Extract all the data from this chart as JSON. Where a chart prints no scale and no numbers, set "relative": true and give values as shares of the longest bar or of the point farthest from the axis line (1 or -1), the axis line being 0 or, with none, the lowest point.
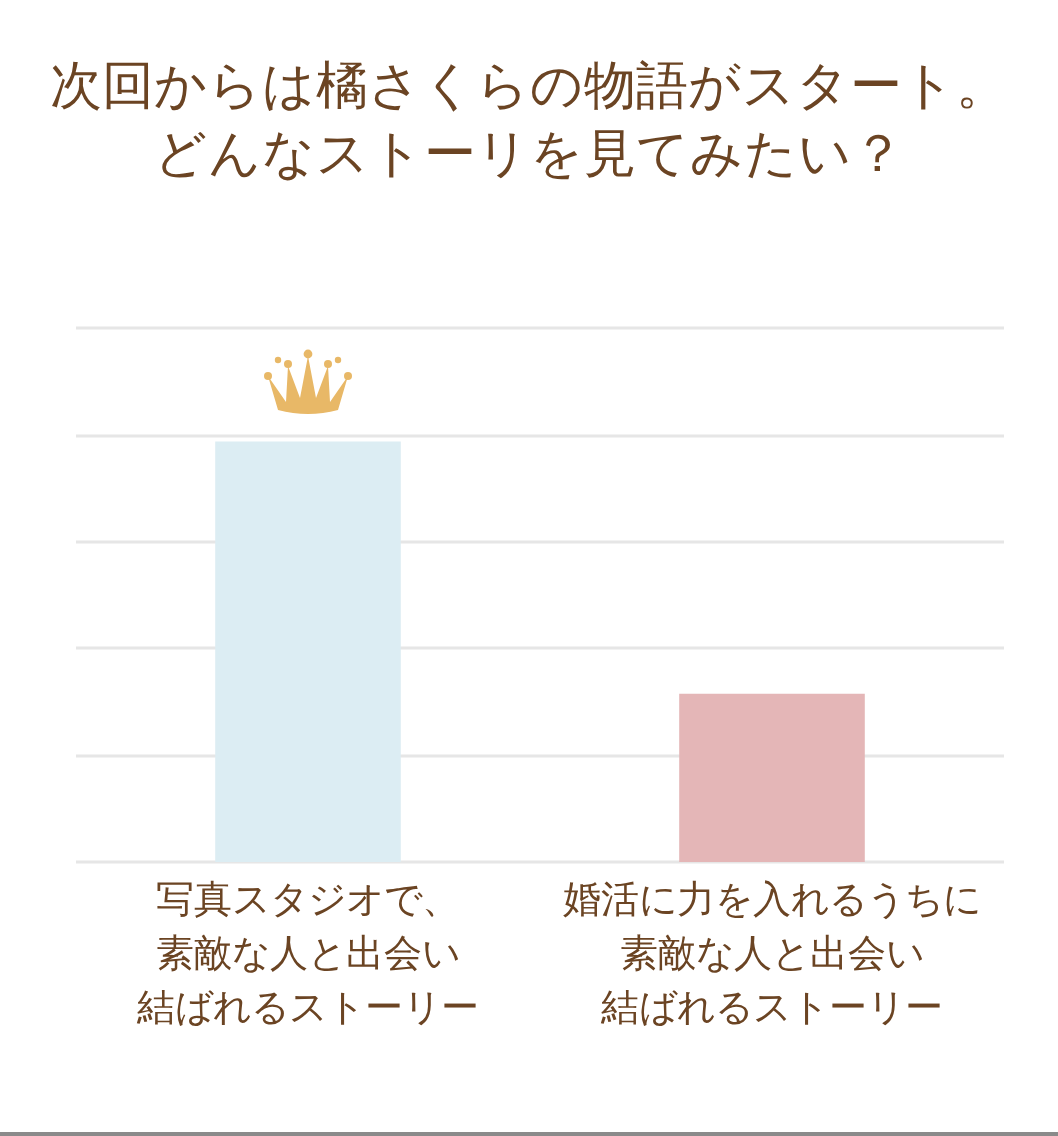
{
  "chart_data": {
    "type": "bar",
    "title": "次回からは橘さくらの物語がスタート。どんなストーリを見てみたい？",
    "categories": [
      "写真スタジオで、素敵な人と出会い結ばれるストーリー",
      "婚活に力を入れるうちに素敵な人と出会い結ばれるストーリー"
    ],
    "values": [
      1,
      0.4
    ],
    "colors": [
      "#dcedf3",
      "#e4b6b7"
    ],
    "relative": true,
    "grid": "y"
  }
}
